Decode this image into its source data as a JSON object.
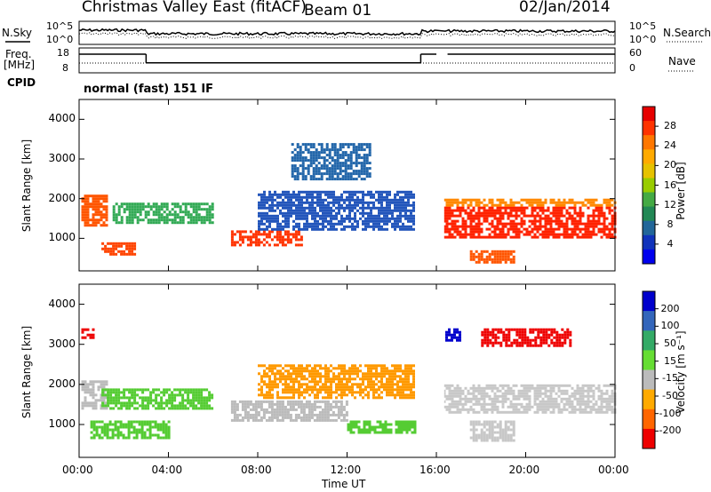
{
  "header": {
    "title": "Christmas Valley East (fitACF)",
    "beam": "Beam 01",
    "date": "02/Jan/2014"
  },
  "left_labels": {
    "nsky": "N.Sky",
    "freq": "Freq.",
    "freq_unit": "[MHz]",
    "cpid": "CPID"
  },
  "right_labels": {
    "nsearch": "N.Search",
    "nave": "Nave"
  },
  "cpid_value": "normal (fast) 151 IF",
  "chart_data": [
    {
      "type": "line",
      "name": "noise",
      "y_ticks_left": [
        "10^5",
        "10^0"
      ],
      "y_ticks_right": [
        "10^5",
        "10^0"
      ],
      "series": [
        {
          "name": "N.Sky",
          "style": "solid"
        },
        {
          "name": "N.Search",
          "style": "dotted"
        }
      ]
    },
    {
      "type": "line",
      "name": "frequency",
      "ylim_left": [
        8,
        18
      ],
      "ylim_right": [
        0,
        60
      ],
      "y_ticks_left": [
        "18",
        "8"
      ],
      "y_ticks_right": [
        "60",
        "0"
      ],
      "freq_steps": [
        {
          "start": 0.0,
          "end": 3.0,
          "value": 15.5
        },
        {
          "start": 3.0,
          "end": 15.3,
          "value": 12.0
        },
        {
          "start": 15.3,
          "end": 16.0,
          "value": 15.5
        },
        {
          "start": 16.5,
          "end": 24.0,
          "value": 15.5
        }
      ]
    },
    {
      "type": "heatmap",
      "name": "power",
      "xlim": [
        0,
        24
      ],
      "ylim": [
        180,
        4500
      ],
      "ylabel": "Slant Range [km]",
      "y_ticks": [
        1000,
        2000,
        3000,
        4000
      ],
      "colorbar": {
        "label": "Power [dB]",
        "ticks": [
          "28",
          "24",
          "20",
          "16",
          "12",
          "8",
          "4"
        ],
        "colors": [
          "#e60000",
          "#ff3300",
          "#ff7700",
          "#ffaa00",
          "#e6c200",
          "#99cc00",
          "#44aa44",
          "#228855",
          "#226699",
          "#1133bb",
          "#0000ee"
        ]
      },
      "regions": [
        {
          "t0": 0.1,
          "t1": 1.2,
          "r0": 1300,
          "r1": 2100,
          "color": "#ff5500"
        },
        {
          "t0": 1.0,
          "t1": 2.5,
          "r0": 600,
          "r1": 900,
          "color": "#ff4400"
        },
        {
          "t0": 1.5,
          "t1": 6.0,
          "r0": 1400,
          "r1": 1900,
          "color": "#33aa55"
        },
        {
          "t0": 6.8,
          "t1": 10.0,
          "r0": 800,
          "r1": 1200,
          "color": "#ff3300"
        },
        {
          "t0": 8.0,
          "t1": 15.0,
          "r0": 1200,
          "r1": 2200,
          "color": "#2255bb"
        },
        {
          "t0": 9.5,
          "t1": 13.0,
          "r0": 2500,
          "r1": 3400,
          "color": "#2266aa"
        },
        {
          "t0": 16.3,
          "t1": 24.0,
          "r0": 1000,
          "r1": 1800,
          "color": "#ff2200"
        },
        {
          "t0": 16.3,
          "t1": 24.0,
          "r0": 1800,
          "r1": 2000,
          "color": "#ff8800"
        },
        {
          "t0": 17.5,
          "t1": 19.5,
          "r0": 400,
          "r1": 700,
          "color": "#ff5500"
        }
      ]
    },
    {
      "type": "heatmap",
      "name": "velocity",
      "xlim": [
        0,
        24
      ],
      "ylim": [
        180,
        4500
      ],
      "xlabel": "Time UT",
      "ylabel": "Slant Range [km]",
      "x_ticks": [
        "00:00",
        "04:00",
        "08:00",
        "12:00",
        "16:00",
        "20:00",
        "00:00"
      ],
      "y_ticks": [
        1000,
        2000,
        3000,
        4000
      ],
      "colorbar": {
        "label": "Velocity [m s⁻¹]",
        "ticks": [
          "200",
          "100",
          "50",
          "15",
          "-15",
          "-50",
          "-100",
          "-200"
        ],
        "colors": [
          "#0000cc",
          "#3366bb",
          "#33aa66",
          "#66dd33",
          "#bbbbbb",
          "#ffaa00",
          "#ff6600",
          "#ee0000"
        ]
      },
      "regions": [
        {
          "t0": 0.1,
          "t1": 1.2,
          "r0": 1400,
          "r1": 2100,
          "color": "#bbbbbb"
        },
        {
          "t0": 0.5,
          "t1": 4.0,
          "r0": 700,
          "r1": 1100,
          "color": "#55cc33"
        },
        {
          "t0": 1.0,
          "t1": 6.0,
          "r0": 1400,
          "r1": 1900,
          "color": "#55cc33"
        },
        {
          "t0": 6.8,
          "t1": 12.0,
          "r0": 1100,
          "r1": 1600,
          "color": "#bbbbbb"
        },
        {
          "t0": 12.0,
          "t1": 15.0,
          "r0": 800,
          "r1": 1100,
          "color": "#55cc33"
        },
        {
          "t0": 8.0,
          "t1": 15.0,
          "r0": 1700,
          "r1": 2500,
          "color": "#ff9900"
        },
        {
          "t0": 16.3,
          "t1": 24.0,
          "r0": 1300,
          "r1": 2000,
          "color": "#c8c8c8"
        },
        {
          "t0": 17.5,
          "t1": 19.5,
          "r0": 600,
          "r1": 1100,
          "color": "#c8c8c8"
        },
        {
          "t0": 16.4,
          "t1": 17.0,
          "r0": 3100,
          "r1": 3400,
          "color": "#0000cc"
        },
        {
          "t0": 18.0,
          "t1": 22.0,
          "r0": 3000,
          "r1": 3400,
          "color": "#ee0000"
        },
        {
          "t0": 0.1,
          "t1": 0.6,
          "r0": 3200,
          "r1": 3400,
          "color": "#ee0000"
        }
      ]
    }
  ]
}
